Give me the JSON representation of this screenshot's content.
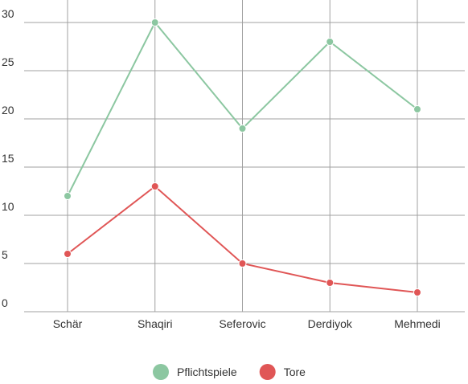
{
  "chart_data": {
    "type": "line",
    "categories": [
      "Schär",
      "Shaqiri",
      "Seferovic",
      "Derdiyok",
      "Mehmedi"
    ],
    "series": [
      {
        "name": "Pflichtspiele",
        "color": "#8cc7a1",
        "values": [
          12,
          30,
          19,
          28,
          21
        ]
      },
      {
        "name": "Tore",
        "color": "#e05656",
        "values": [
          6,
          13,
          5,
          3,
          2
        ]
      }
    ],
    "ylim": [
      0,
      32
    ],
    "yticks": [
      0,
      5,
      10,
      15,
      20,
      25,
      30
    ],
    "grid": true,
    "legend": "bottom"
  }
}
